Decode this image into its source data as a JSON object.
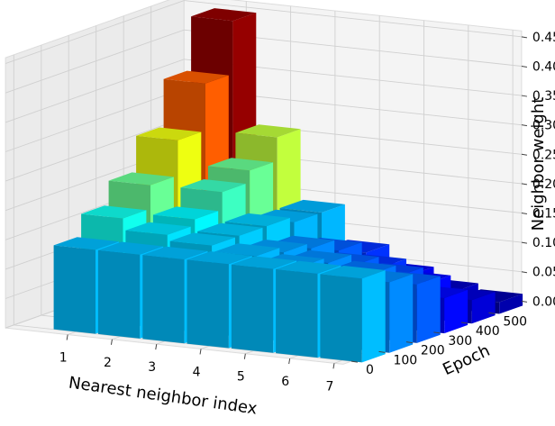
{
  "chart_data": {
    "type": "bar3d",
    "title": "",
    "xlabel": "Nearest neighbor index",
    "ylabel": "Epoch",
    "zlabel": "Neighbor weight",
    "x_ticks": [
      "1",
      "2",
      "3",
      "4",
      "5",
      "6",
      "7"
    ],
    "y_ticks": [
      "0",
      "100",
      "200",
      "300",
      "400",
      "500"
    ],
    "z_ticks": [
      "0.00",
      "0.05",
      "0.10",
      "0.15",
      "0.20",
      "0.25",
      "0.30",
      "0.35",
      "0.40",
      "0.45"
    ],
    "zlim": [
      0,
      0.46
    ],
    "epochs": [
      0,
      100,
      200,
      300,
      400,
      500
    ],
    "neighbor_index": [
      1,
      2,
      3,
      4,
      5,
      6,
      7
    ],
    "weights": [
      [
        0.143,
        0.143,
        0.143,
        0.143,
        0.143,
        0.143,
        0.143
      ],
      [
        0.18,
        0.16,
        0.15,
        0.14,
        0.13,
        0.12,
        0.12
      ],
      [
        0.22,
        0.17,
        0.15,
        0.13,
        0.12,
        0.11,
        0.1
      ],
      [
        0.28,
        0.2,
        0.15,
        0.12,
        0.1,
        0.09,
        0.06
      ],
      [
        0.36,
        0.22,
        0.14,
        0.1,
        0.08,
        0.06,
        0.04
      ],
      [
        0.45,
        0.26,
        0.14,
        0.08,
        0.05,
        0.03,
        0.02
      ]
    ],
    "colormap": "jet",
    "grid": true
  }
}
